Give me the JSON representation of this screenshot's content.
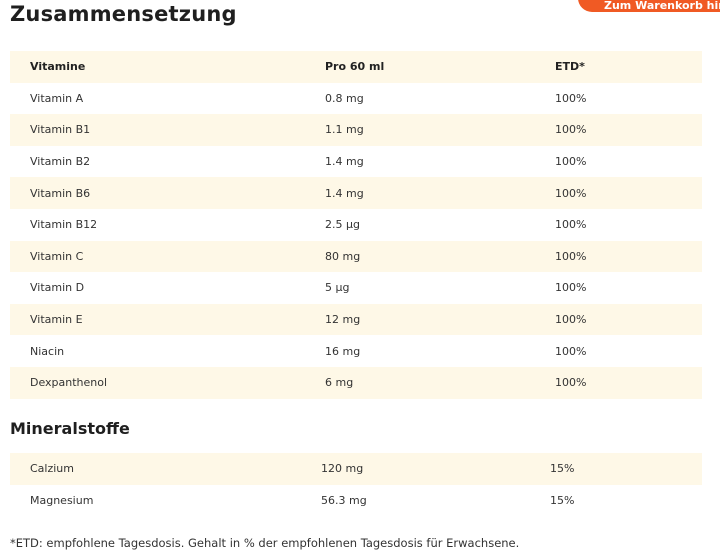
{
  "header": {
    "title": "Zusammensetzung",
    "cta_label": "Zum Warenkorb hinzufügen"
  },
  "vitamins": {
    "columns": [
      "Vitamine",
      "Pro 60 ml",
      "ETD*"
    ],
    "rows": [
      [
        "Vitamin A",
        "0.8 mg",
        "100%"
      ],
      [
        "Vitamin B1",
        "1.1 mg",
        "100%"
      ],
      [
        "Vitamin B2",
        "1.4 mg",
        "100%"
      ],
      [
        "Vitamin B6",
        "1.4 mg",
        "100%"
      ],
      [
        "Vitamin B12",
        "2.5 µg",
        "100%"
      ],
      [
        "Vitamin C",
        "80 mg",
        "100%"
      ],
      [
        "Vitamin D",
        "5 µg",
        "100%"
      ],
      [
        "Vitamin E",
        "12 mg",
        "100%"
      ],
      [
        "Niacin",
        "16 mg",
        "100%"
      ],
      [
        "Dexpanthenol",
        "6 mg",
        "100%"
      ]
    ]
  },
  "minerals": {
    "title": "Mineralstoffe",
    "rows": [
      [
        "Calzium",
        "120 mg",
        "15%"
      ],
      [
        "Magnesium",
        "56.3 mg",
        "15%"
      ]
    ]
  },
  "footnote": "*ETD: empfohlene Tagesdosis. Gehalt in % der empfohlenen Tagesdosis für Erwachsene.",
  "colors": {
    "accent": "#f05a24",
    "row_stripe": "#fef8e7"
  }
}
